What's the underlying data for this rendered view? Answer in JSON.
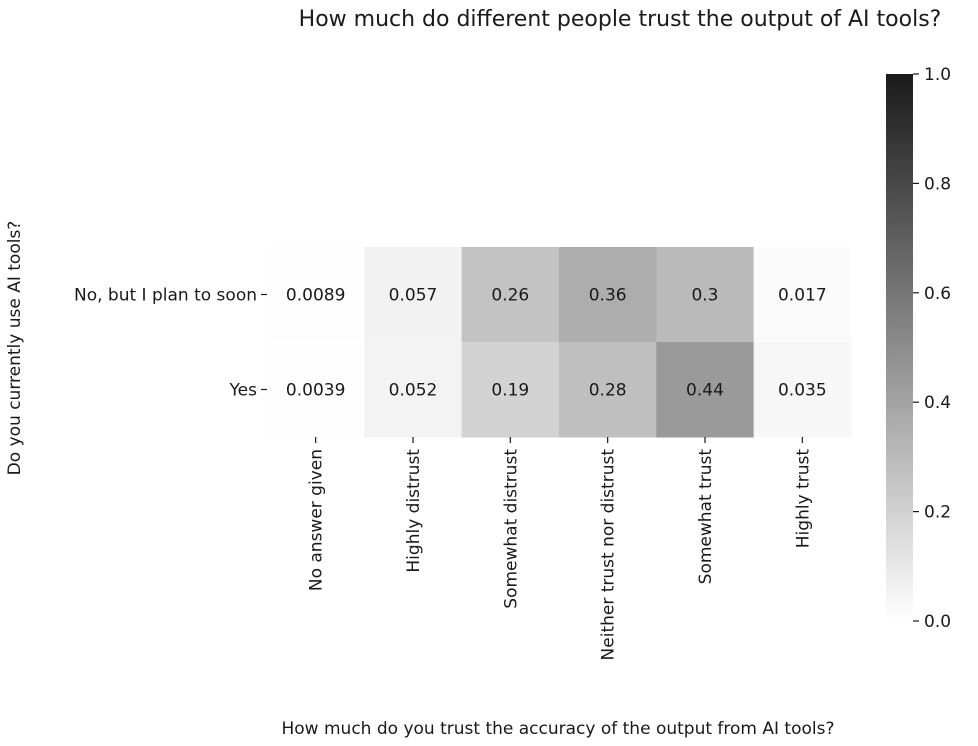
{
  "chart_data": {
    "type": "heatmap",
    "title": "How much do different people trust the output of AI tools?",
    "xlabel": "How much do you trust the accuracy of the output from AI tools?",
    "ylabel": "Do you currently use AI tools?",
    "x_categories": [
      "No answer given",
      "Highly distrust",
      "Somewhat distrust",
      "Neither trust nor distrust",
      "Somewhat trust",
      "Highly trust"
    ],
    "y_categories": [
      "No, but I plan to soon",
      "Yes"
    ],
    "values": [
      [
        0.0089,
        0.057,
        0.26,
        0.36,
        0.3,
        0.017
      ],
      [
        0.0039,
        0.052,
        0.19,
        0.28,
        0.44,
        0.035
      ]
    ],
    "cell_labels": [
      [
        "0.0089",
        "0.057",
        "0.26",
        "0.36",
        "0.3",
        "0.017"
      ],
      [
        "0.0039",
        "0.052",
        "0.19",
        "0.28",
        "0.44",
        "0.035"
      ]
    ],
    "colorbar": {
      "range": [
        0,
        1
      ],
      "ticks": [
        0,
        0.2,
        0.4,
        0.6,
        0.8,
        1
      ],
      "tick_labels": [
        "0.0",
        "0.2",
        "0.4",
        "0.6",
        "0.8",
        "1.0"
      ],
      "colormap": [
        "#ffffff",
        "#1a1a1a"
      ]
    }
  }
}
